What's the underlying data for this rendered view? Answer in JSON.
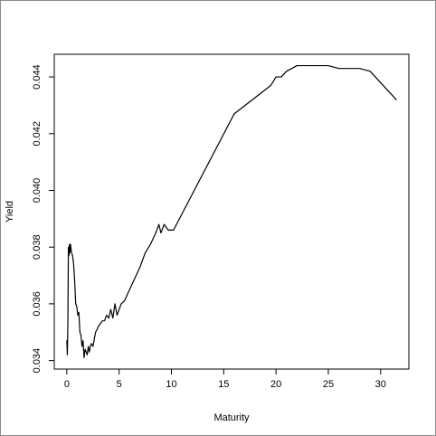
{
  "chart_data": {
    "type": "line",
    "title": "",
    "xlabel": "Maturity",
    "ylabel": "Yield",
    "xlim": [
      -1.2,
      32.7
    ],
    "ylim": [
      0.0337,
      0.0448
    ],
    "x_ticks": [
      0,
      5,
      10,
      15,
      20,
      25,
      30
    ],
    "x_tick_labels": [
      "0",
      "5",
      "10",
      "15",
      "20",
      "25",
      "30"
    ],
    "y_ticks": [
      0.034,
      0.036,
      0.038,
      0.04,
      0.042,
      0.044
    ],
    "y_tick_labels": [
      "0.034",
      "0.036",
      "0.038",
      "0.040",
      "0.042",
      "0.044"
    ],
    "grid": false,
    "legend": "none",
    "line_color": "#000000",
    "series": [
      {
        "x": [
          0.0,
          0.05,
          0.1,
          0.15,
          0.2,
          0.25,
          0.3,
          0.35,
          0.45,
          0.55,
          0.65,
          0.75,
          0.85,
          0.95,
          1.05,
          1.15,
          1.25,
          1.35,
          1.45,
          1.55,
          1.65,
          1.75,
          1.85,
          1.95,
          2.05,
          2.15,
          2.25,
          2.35,
          2.5,
          2.6,
          2.75,
          2.9,
          3.0,
          3.2,
          3.4,
          3.6,
          3.8,
          4.0,
          4.2,
          4.4,
          4.6,
          4.8,
          5.0,
          5.2,
          5.5,
          6.0,
          6.5,
          7.0,
          7.5,
          8.0,
          8.5,
          8.8,
          9.0,
          9.3,
          9.7,
          10.2,
          16.0,
          19.5,
          20.0,
          20.5,
          21.0,
          21.5,
          22.0,
          22.5,
          23.0,
          24.0,
          25.0,
          26.0,
          27.0,
          28.0,
          29.0,
          31.5
        ],
        "y": [
          0.0347,
          0.0342,
          0.0353,
          0.038,
          0.0377,
          0.0381,
          0.0378,
          0.0381,
          0.0378,
          0.0377,
          0.0374,
          0.0368,
          0.036,
          0.0359,
          0.0356,
          0.0357,
          0.035,
          0.0349,
          0.0345,
          0.0347,
          0.0341,
          0.0344,
          0.0343,
          0.0342,
          0.0345,
          0.0343,
          0.0345,
          0.0346,
          0.0345,
          0.0347,
          0.035,
          0.0351,
          0.0352,
          0.0353,
          0.0354,
          0.0354,
          0.0356,
          0.0355,
          0.0358,
          0.0355,
          0.036,
          0.0356,
          0.0358,
          0.036,
          0.0361,
          0.0365,
          0.0369,
          0.0373,
          0.0378,
          0.0381,
          0.0385,
          0.0388,
          0.0385,
          0.0388,
          0.0386,
          0.0386,
          0.0427,
          0.0437,
          0.044,
          0.044,
          0.0442,
          0.0443,
          0.0444,
          0.0444,
          0.0444,
          0.0444,
          0.0444,
          0.0443,
          0.0443,
          0.0443,
          0.0442,
          0.0432
        ]
      }
    ]
  }
}
